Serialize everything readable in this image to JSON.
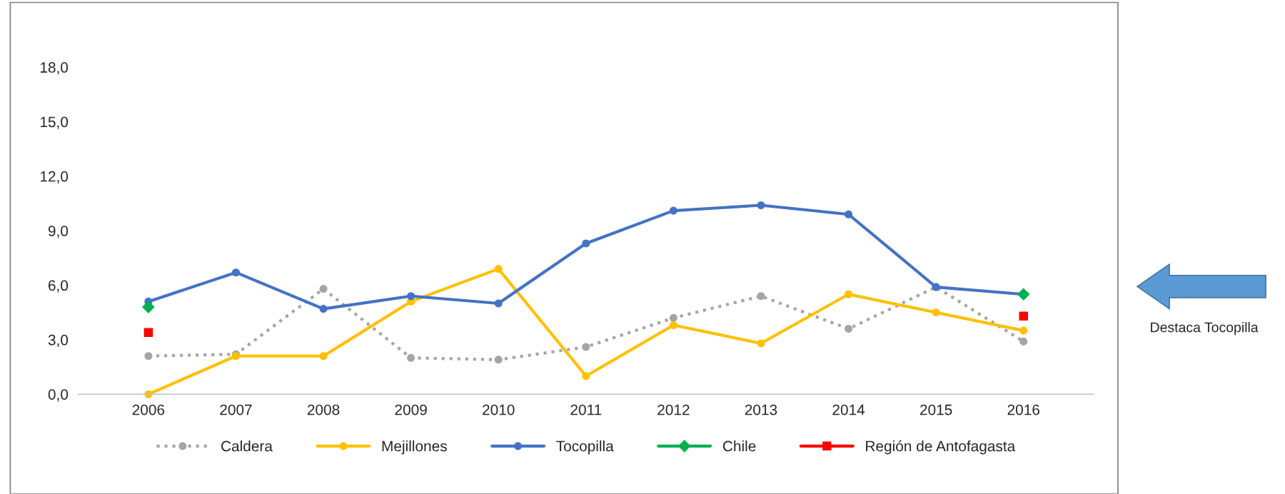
{
  "chart_data": {
    "type": "line",
    "categories": [
      "2006",
      "2007",
      "2008",
      "2009",
      "2010",
      "2011",
      "2012",
      "2013",
      "2014",
      "2015",
      "2016"
    ],
    "series": [
      {
        "name": "Caldera",
        "color": "#a5a5a5",
        "line_style": "dotted",
        "marker": "circle",
        "values": [
          2.1,
          2.2,
          5.8,
          2.0,
          1.9,
          2.6,
          4.2,
          5.4,
          3.6,
          5.9,
          2.9
        ]
      },
      {
        "name": "Mejillones",
        "color": "#ffc000",
        "line_style": "solid",
        "marker": "circle",
        "values": [
          0.0,
          2.1,
          2.1,
          5.1,
          6.9,
          1.0,
          3.8,
          2.8,
          5.5,
          4.5,
          3.5
        ]
      },
      {
        "name": "Tocopilla",
        "color": "#4472c4",
        "line_style": "solid",
        "marker": "circle",
        "values": [
          5.1,
          6.7,
          4.7,
          5.4,
          5.0,
          8.3,
          10.1,
          10.4,
          9.9,
          5.9,
          5.5
        ]
      },
      {
        "name": "Chile",
        "type": "scatter",
        "color": "#00b050",
        "line_style": "solid",
        "marker": "diamond",
        "values": [
          4.8,
          null,
          null,
          null,
          null,
          null,
          null,
          null,
          null,
          null,
          5.5
        ]
      },
      {
        "name": "Región de Antofagasta",
        "type": "scatter",
        "color": "#ff0000",
        "line_style": "solid",
        "marker": "square",
        "values": [
          3.4,
          null,
          null,
          null,
          null,
          null,
          null,
          null,
          null,
          null,
          4.3
        ]
      }
    ],
    "ylim": [
      0,
      18
    ],
    "yticks": [
      {
        "value": 0,
        "label": "0,0"
      },
      {
        "value": 3,
        "label": "3,0"
      },
      {
        "value": 6,
        "label": "6,0"
      },
      {
        "value": 9,
        "label": "9,0"
      },
      {
        "value": 12,
        "label": "12,0"
      },
      {
        "value": 15,
        "label": "15,0"
      },
      {
        "value": 18,
        "label": "18,0"
      }
    ],
    "grid": false,
    "legend": "bottom",
    "annotations": [
      "Destaca Tocopilla"
    ]
  }
}
